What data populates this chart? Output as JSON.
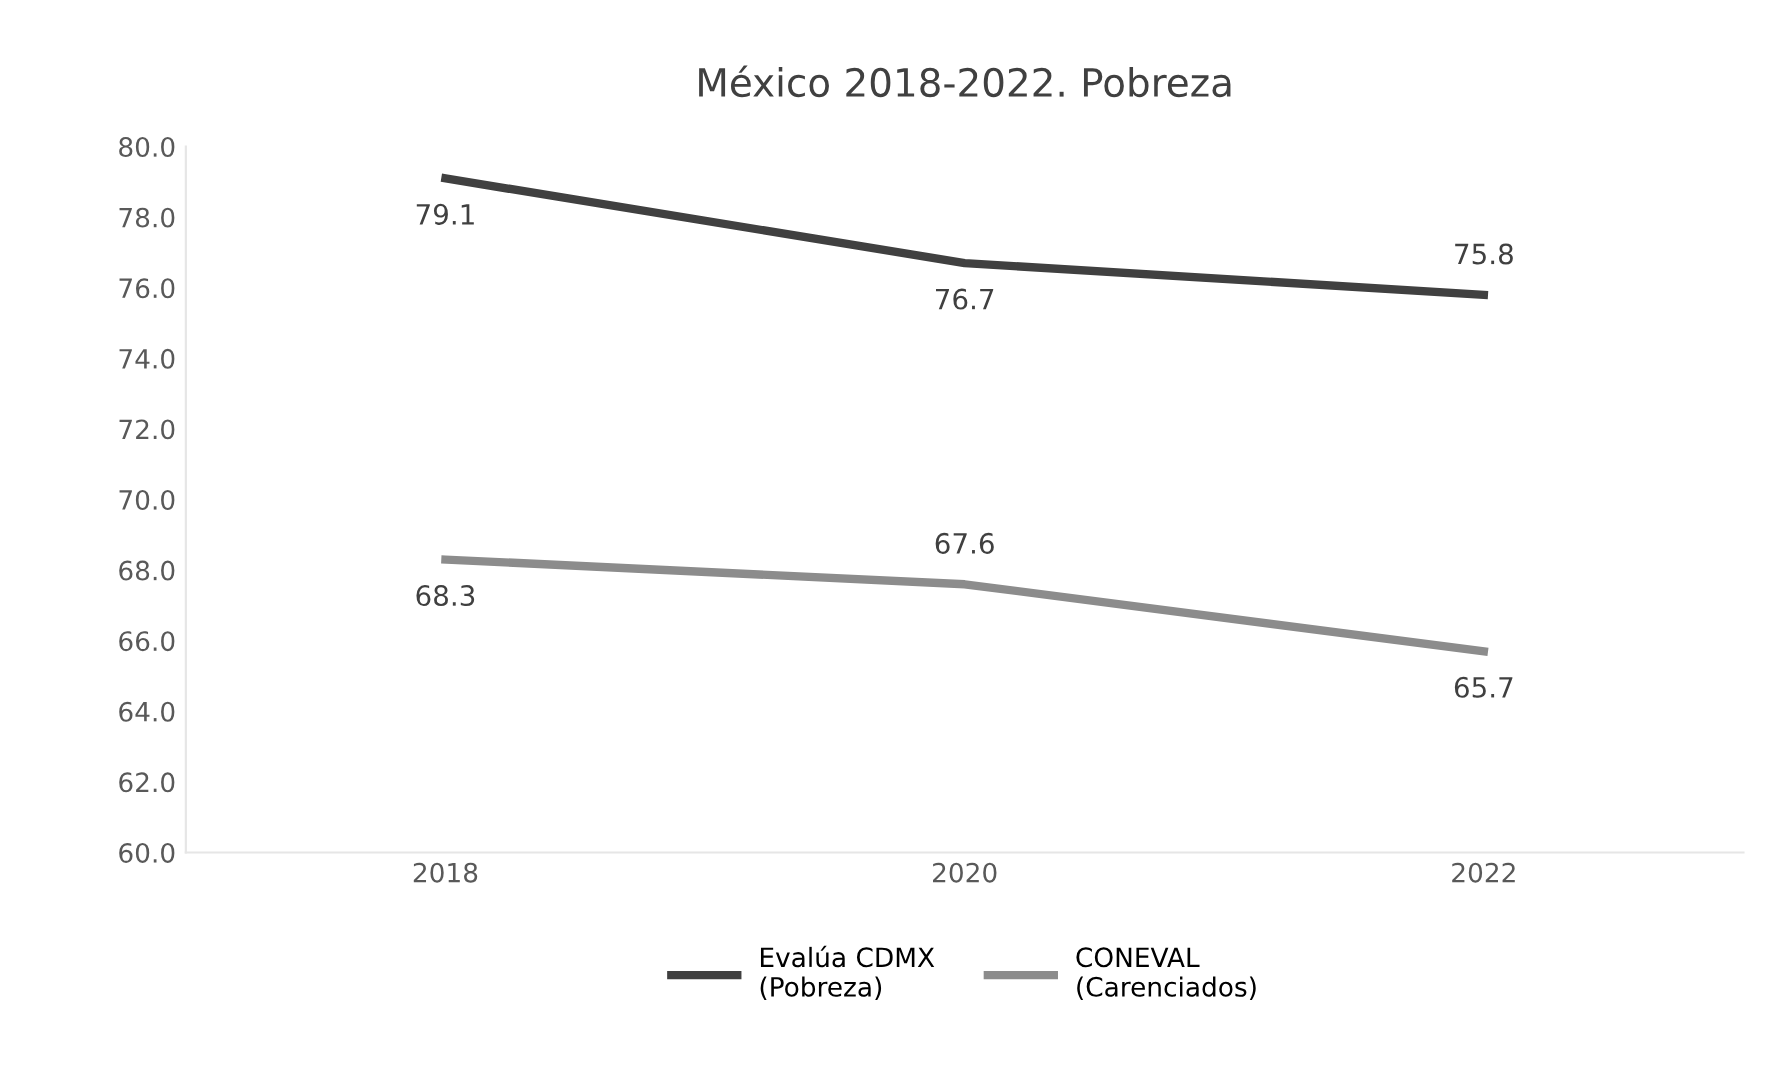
{
  "chart_data": {
    "type": "line",
    "title": "México 2018-2022. Pobreza",
    "categories": [
      "2018",
      "2020",
      "2022"
    ],
    "series": [
      {
        "name": "Evalúa CDMX\n(Pobreza)",
        "color": "#404040",
        "values": [
          79.1,
          76.7,
          75.8
        ]
      },
      {
        "name": "CONEVAL\n(Carenciados)",
        "color": "#8c8c8c",
        "values": [
          68.3,
          67.6,
          65.7
        ]
      }
    ],
    "ylim": [
      60,
      80
    ],
    "yticks": [
      {
        "value": 60,
        "label": "60.0"
      },
      {
        "value": 62,
        "label": "62.0"
      },
      {
        "value": 64,
        "label": "64.0"
      },
      {
        "value": 66,
        "label": "66.0"
      },
      {
        "value": 68,
        "label": "68.0"
      },
      {
        "value": 70,
        "label": "70.0"
      },
      {
        "value": 72,
        "label": "72.0"
      },
      {
        "value": 74,
        "label": "74.0"
      },
      {
        "value": 76,
        "label": "76.0"
      },
      {
        "value": 78,
        "label": "78.0"
      },
      {
        "value": 80,
        "label": "80.0"
      }
    ],
    "data_labels": true,
    "grid": false,
    "legend": "bottom",
    "marker": "none",
    "line_style": "solid"
  }
}
